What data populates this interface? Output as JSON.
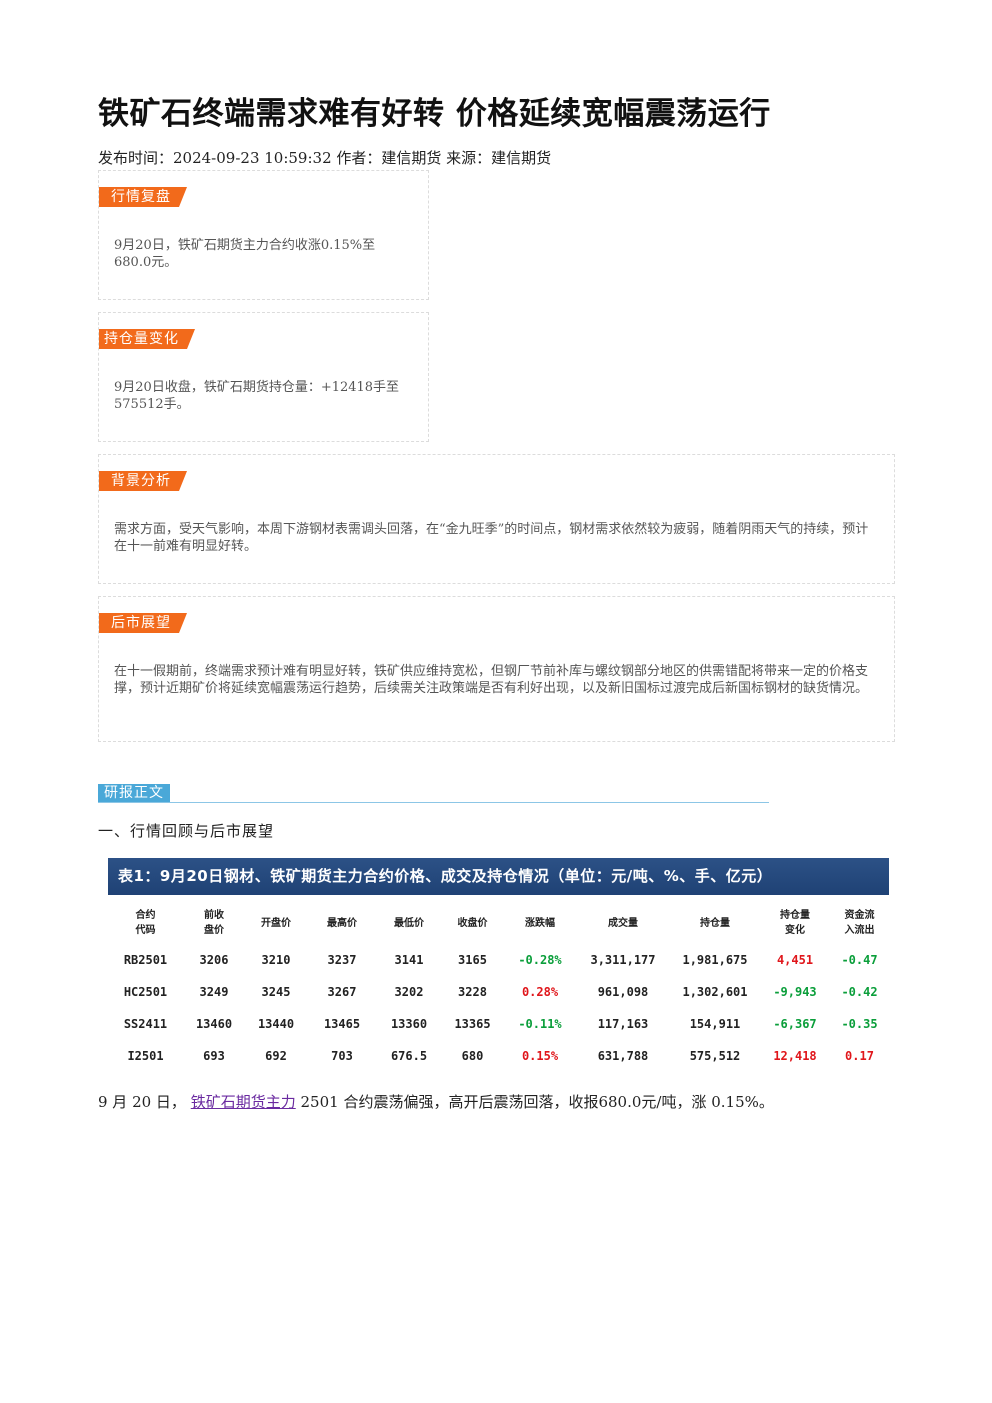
{
  "article": {
    "title": "铁矿石终端需求难有好转 价格延续宽幅震荡运行",
    "meta": "发布时间：2024-09-23 10:59:32 作者：建信期货 来源：建信期货"
  },
  "cards": [
    {
      "tag": "行情复盘",
      "text": "9月20日，铁矿石期货主力合约收涨0.15%至680.0元。"
    },
    {
      "tag": "持仓量变化",
      "text": "9月20日收盘，铁矿石期货持仓量：+12418手至575512手。"
    },
    {
      "tag": "背景分析",
      "text": "需求方面，受天气影响，本周下游钢材表需调头回落，在“金九旺季”的时间点，钢材需求依然较为疲弱，随着阴雨天气的持续，预计在十一前难有明显好转。"
    },
    {
      "tag": "后市展望",
      "text": "在十一假期前，终端需求预计难有明显好转，铁矿供应维持宽松，但钢厂节前补库与螺纹钢部分地区的供需错配将带来一定的价格支撑，预计近期矿价将延续宽幅震荡运行趋势，后续需关注政策端是否有利好出现，以及新旧国标过渡完成后新国标钢材的缺货情况。"
    }
  ],
  "section": {
    "tag": "研报正文",
    "heading": "一、行情回顾与后市展望"
  },
  "table": {
    "caption": "表1：9月20日钢材、铁矿期货主力合约价格、成交及持仓情况（单位：元/吨、%、手、亿元）",
    "headers": [
      "合约\n代码",
      "前收\n盘价",
      "开盘价",
      "最高价",
      "最低价",
      "收盘价",
      "涨跌幅",
      "成交量",
      "持仓量",
      "持仓量\n变化",
      "资金流\n入流出"
    ],
    "rows": [
      [
        "RB2501",
        "3206",
        "3210",
        "3237",
        "3141",
        "3165",
        "-0.28%",
        "3,311,177",
        "1,981,675",
        "4,451",
        "-0.47"
      ],
      [
        "HC2501",
        "3249",
        "3245",
        "3267",
        "3202",
        "3228",
        "0.28%",
        "961,098",
        "1,302,601",
        "-9,943",
        "-0.42"
      ],
      [
        "SS2411",
        "13460",
        "13440",
        "13465",
        "13360",
        "13365",
        "-0.11%",
        "117,163",
        "154,911",
        "-6,367",
        "-0.35"
      ],
      [
        "I2501",
        "693",
        "692",
        "703",
        "676.5",
        "680",
        "0.15%",
        "631,788",
        "575,512",
        "12,418",
        "0.17"
      ]
    ],
    "colors": {
      "up": "#e0161b",
      "down": "#0a9e3a"
    }
  },
  "paragraph": {
    "prefix": "9 月 20 日，",
    "link": "铁矿石期货主力",
    "suffix": "2501 合约震荡偏强，高开后震荡回落，收报680.0元/吨，涨 0.15%。"
  }
}
